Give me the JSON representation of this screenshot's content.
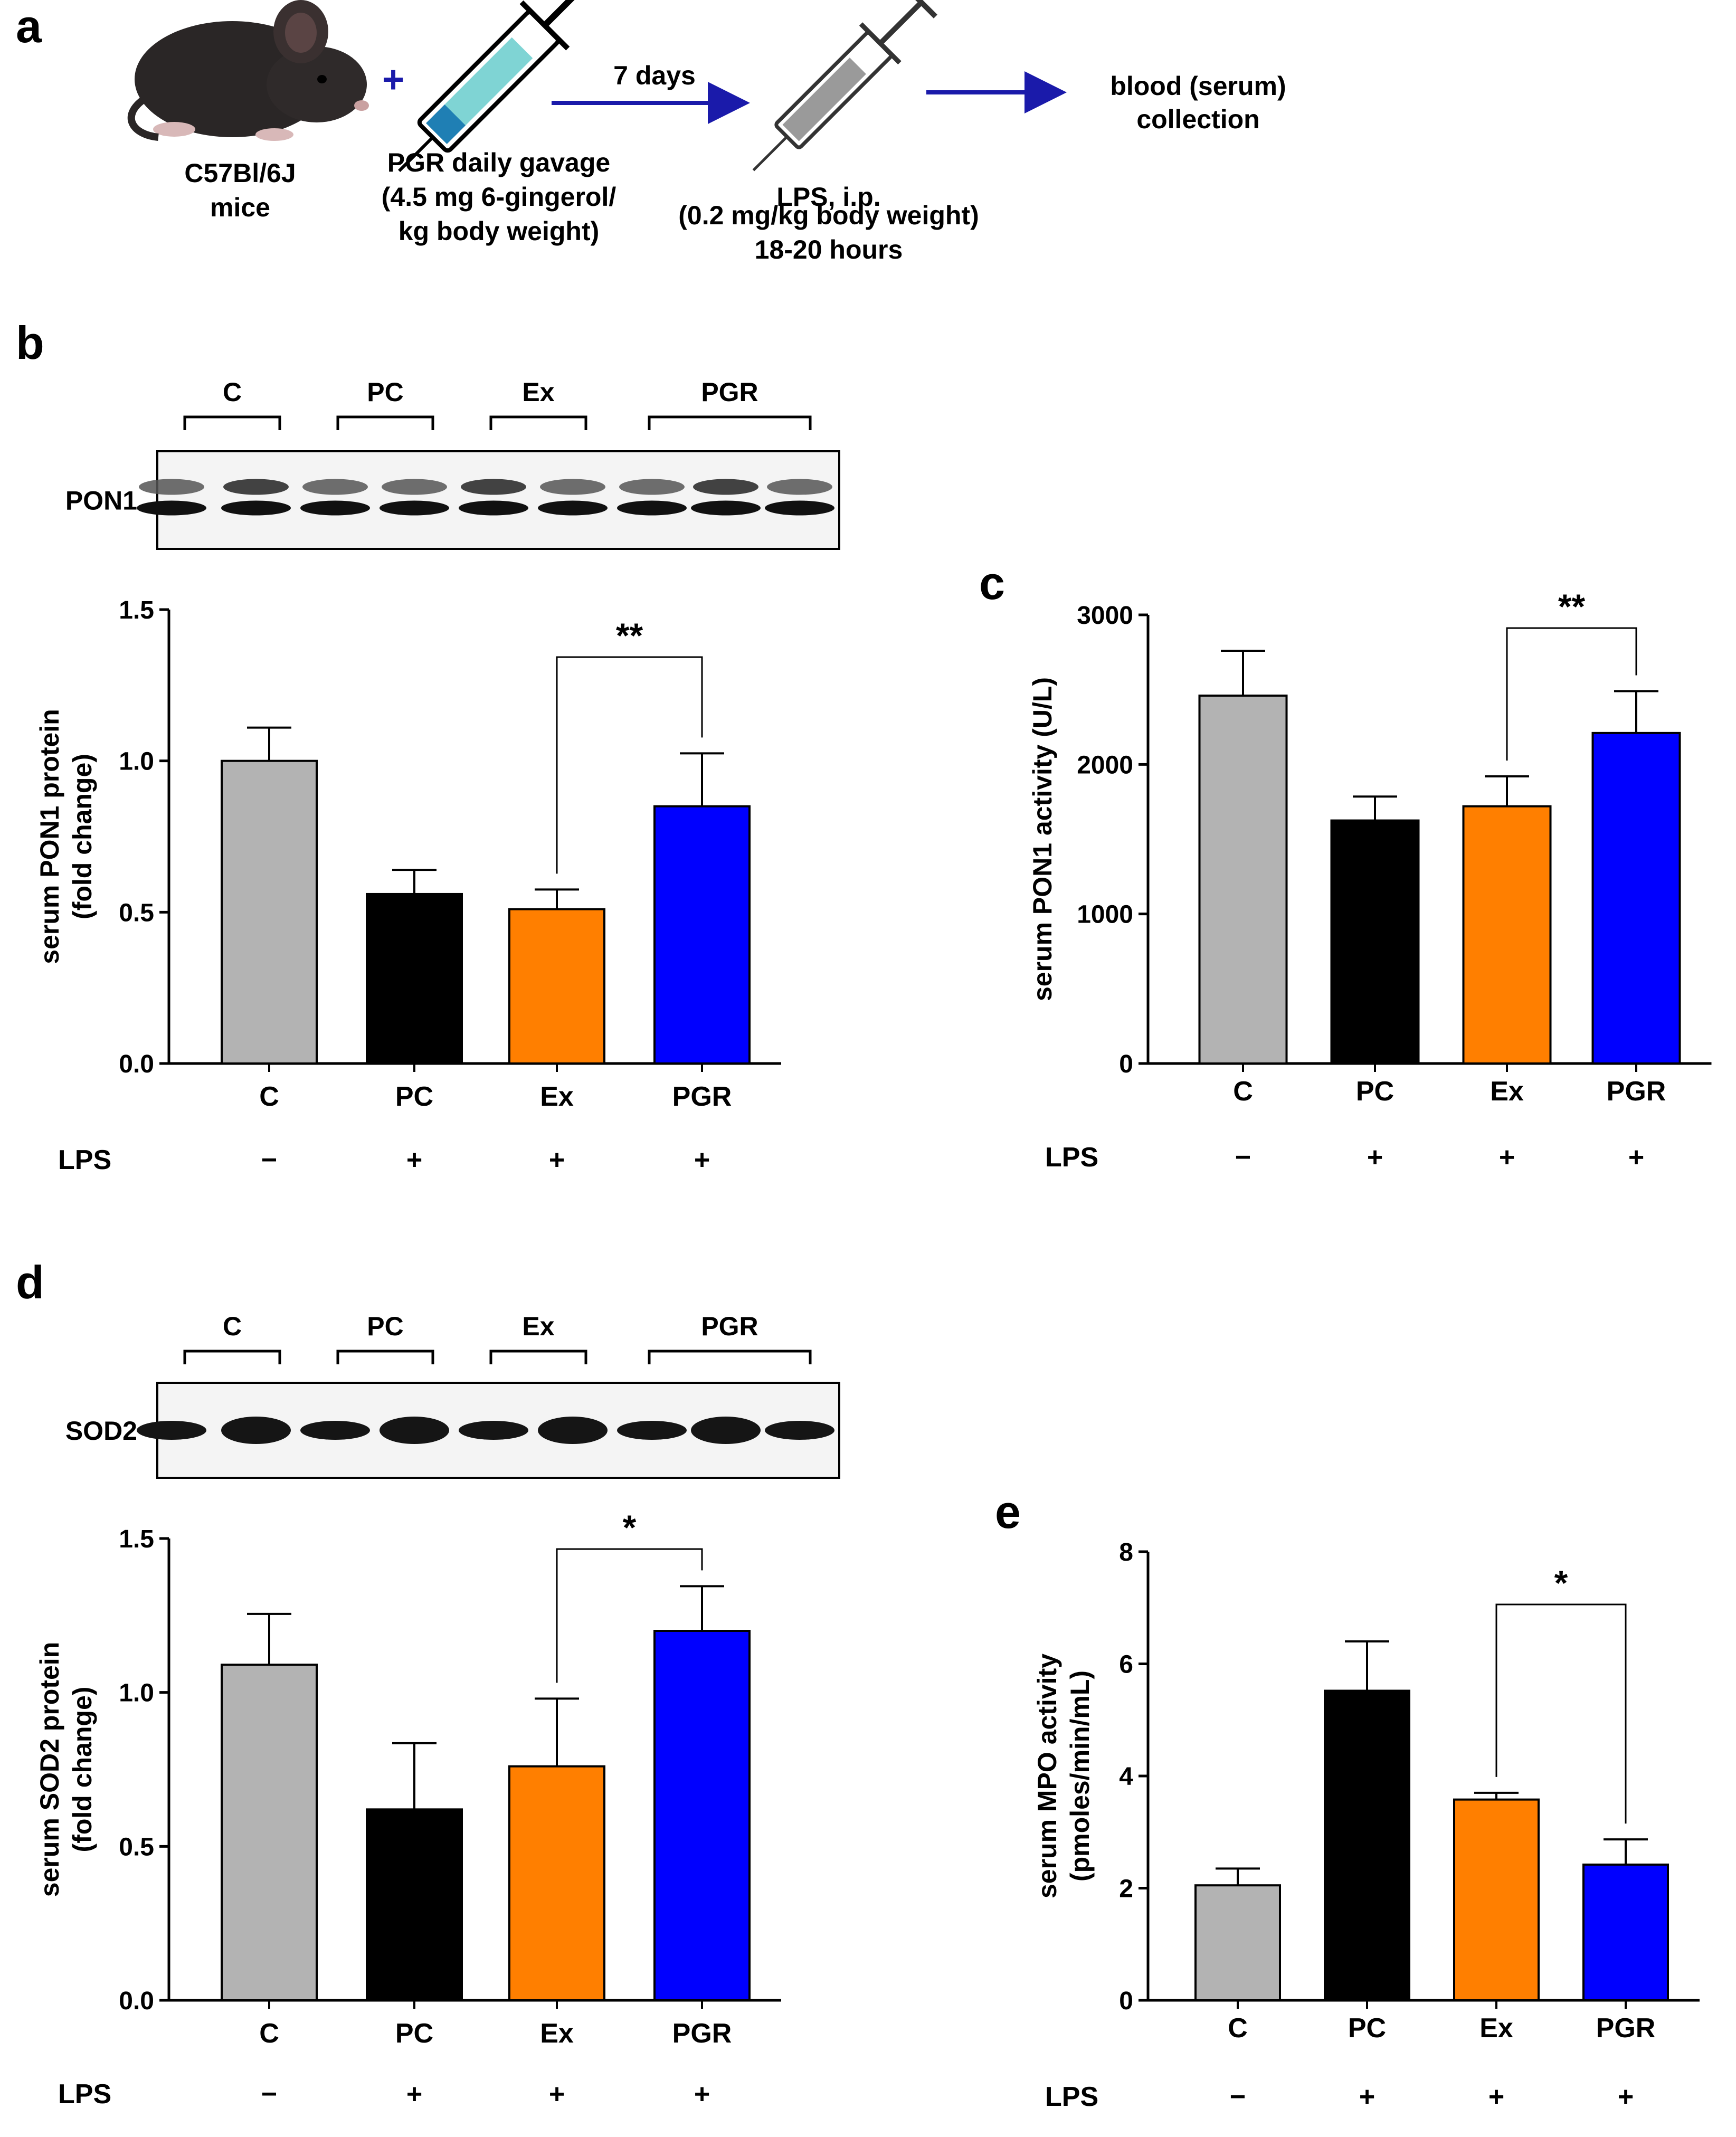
{
  "panels": {
    "a": "a",
    "b": "b",
    "c": "c",
    "d": "d",
    "e": "e"
  },
  "schematic": {
    "mouse_label": [
      "C57Bl/6J",
      "mice"
    ],
    "plus": "+",
    "gavage_label": [
      "PGR daily gavage",
      "(4.5 mg 6-gingerol/",
      "kg body weight)"
    ],
    "arrow1_label": "7 days",
    "lps_label": [
      "LPS, i.p.",
      "(0.2 mg/kg body weight)",
      "18-20 hours"
    ],
    "collection_label": [
      "blood (serum)",
      "collection"
    ]
  },
  "colors": {
    "C": "#b3b3b3",
    "PC": "#000000",
    "Ex": "#ff7f00",
    "PGR": "#0000ff",
    "arrow": "#1a1aaa",
    "syringe_fluid": "#7fd4d4"
  },
  "blots": [
    {
      "label": "PON1",
      "groups": [
        "C",
        "PC",
        "Ex",
        "PGR"
      ]
    },
    {
      "label": "SOD2",
      "groups": [
        "C",
        "PC",
        "Ex",
        "PGR"
      ]
    }
  ],
  "lps": {
    "label": "LPS",
    "signs": [
      "−",
      "+",
      "+",
      "+"
    ]
  },
  "chart_data": [
    {
      "panel": "b",
      "type": "bar",
      "categories": [
        "C",
        "PC",
        "Ex",
        "PGR"
      ],
      "values": [
        1.0,
        0.56,
        0.51,
        0.85
      ],
      "errors": [
        0.11,
        0.08,
        0.065,
        0.175
      ],
      "ylabel": [
        "serum PON1 protein",
        "(fold change)"
      ],
      "ylim": [
        0,
        1.5
      ],
      "ticks": [
        0.0,
        0.5,
        1.0,
        1.5
      ],
      "tick_labels": [
        "0.0",
        "0.5",
        "1.0",
        "1.5"
      ],
      "significance": {
        "from": "Ex",
        "to": "PGR",
        "label": "**"
      }
    },
    {
      "panel": "c",
      "type": "bar",
      "categories": [
        "C",
        "PC",
        "Ex",
        "PGR"
      ],
      "values": [
        2460,
        1625,
        1720,
        2210
      ],
      "errors": [
        300,
        160,
        200,
        280
      ],
      "ylabel": [
        "serum PON1 activity (U/L)"
      ],
      "ylim": [
        0,
        3000
      ],
      "ticks": [
        0,
        1000,
        2000,
        3000
      ],
      "tick_labels": [
        "0",
        "1000",
        "2000",
        "3000"
      ],
      "significance": {
        "from": "Ex",
        "to": "PGR",
        "label": "**"
      }
    },
    {
      "panel": "d",
      "type": "bar",
      "categories": [
        "C",
        "PC",
        "Ex",
        "PGR"
      ],
      "values": [
        1.09,
        0.62,
        0.76,
        1.2
      ],
      "errors": [
        0.165,
        0.215,
        0.22,
        0.145
      ],
      "ylabel": [
        "serum SOD2 protein",
        "(fold change)"
      ],
      "ylim": [
        0,
        1.5
      ],
      "ticks": [
        0.0,
        0.5,
        1.0,
        1.5
      ],
      "tick_labels": [
        "0.0",
        "0.5",
        "1.0",
        "1.5"
      ],
      "significance": {
        "from": "Ex",
        "to": "PGR",
        "label": "*"
      }
    },
    {
      "panel": "e",
      "type": "bar",
      "categories": [
        "C",
        "PC",
        "Ex",
        "PGR"
      ],
      "values": [
        2.05,
        5.52,
        3.58,
        2.42
      ],
      "errors": [
        0.3,
        0.88,
        0.12,
        0.45
      ],
      "ylabel": [
        "serum MPO activity",
        "(pmoles/min/mL)"
      ],
      "ylim": [
        0,
        8
      ],
      "ticks": [
        0,
        2,
        4,
        6,
        8
      ],
      "tick_labels": [
        "0",
        "2",
        "4",
        "6",
        "8"
      ],
      "significance": {
        "from": "Ex",
        "to": "PGR",
        "label": "*"
      }
    }
  ]
}
